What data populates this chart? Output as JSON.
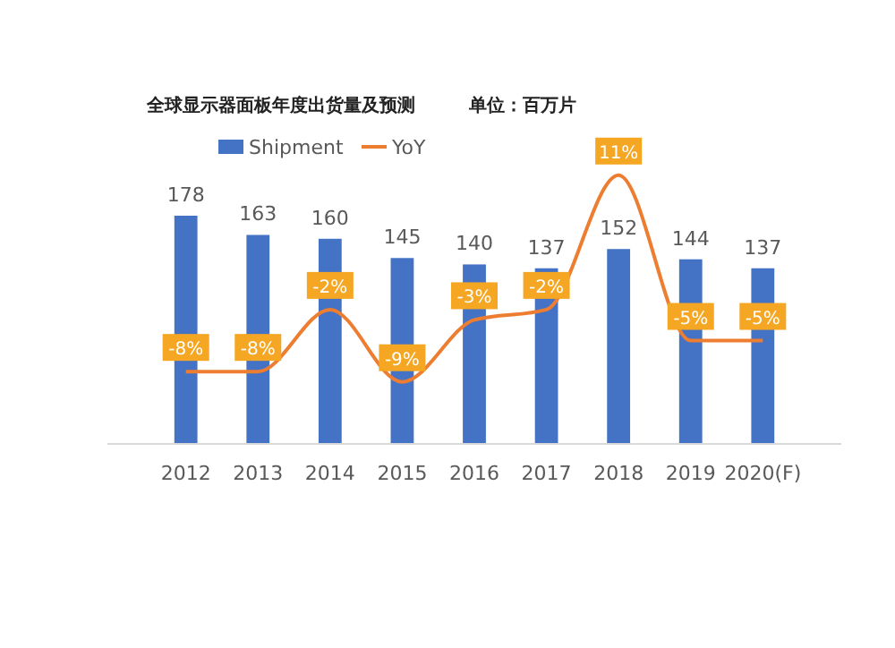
{
  "chart_data": {
    "type": "bar",
    "title": "全球显示器面板年度出货量及预测",
    "subtitle": "单位：百万片",
    "categories": [
      "2012",
      "2013",
      "2014",
      "2015",
      "2016",
      "2017",
      "2018",
      "2019",
      "2020(F)"
    ],
    "series": [
      {
        "name": "Shipment",
        "color": "#4472c4",
        "values": [
          178,
          163,
          160,
          145,
          140,
          137,
          152,
          144,
          137
        ]
      },
      {
        "name": "YoY",
        "type": "line",
        "axis": "y2",
        "color": "#ed7d31",
        "values": [
          -8,
          -8,
          -2,
          -9,
          -3,
          -2,
          11,
          -5,
          -5
        ],
        "value_labels": [
          "-8%",
          "-8%",
          "-2%",
          "-9%",
          "-3%",
          "-2%",
          "11%",
          "-5%",
          "-5%"
        ]
      }
    ],
    "tick_labels": "x",
    "data_labels": true,
    "legend": "top",
    "grid": false
  }
}
